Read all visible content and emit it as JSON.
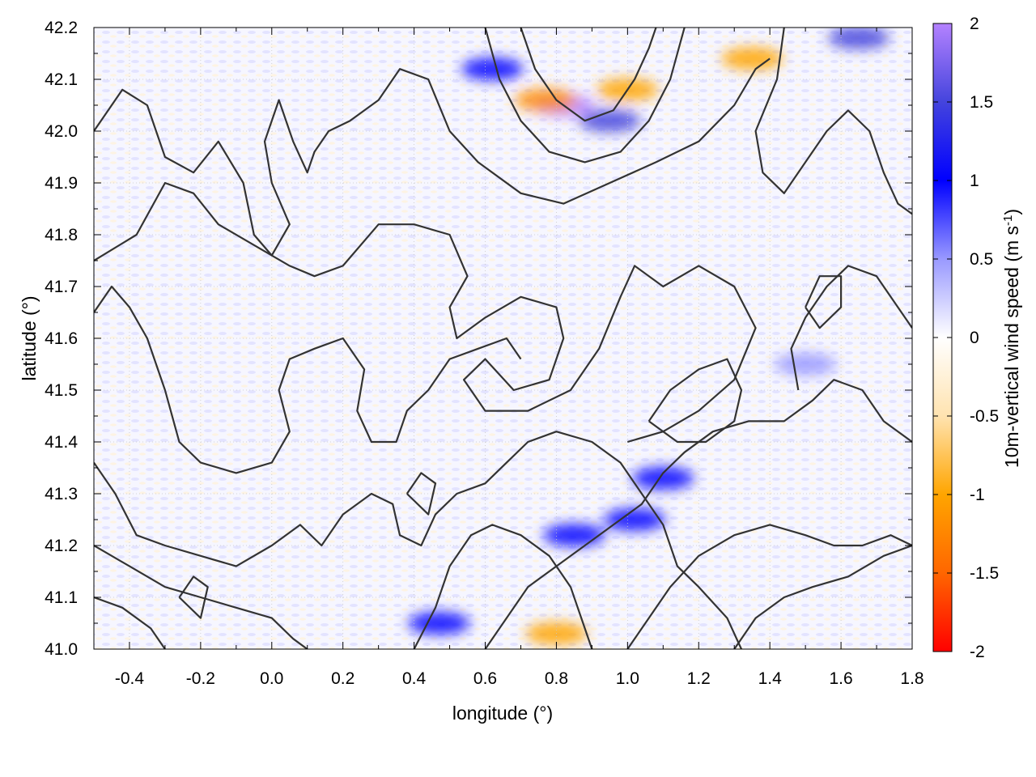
{
  "chart_data": {
    "type": "heatmap",
    "title": "",
    "xlabel": "longitude (°)",
    "ylabel": "latitude (°)",
    "colorbar_label": "10m-vertical wind speed (m s",
    "colorbar_label_sup": "-1",
    "colorbar_label_close": ")",
    "xlim": [
      -0.5,
      1.8
    ],
    "ylim": [
      41.0,
      42.2
    ],
    "xticks": [
      -0.4,
      -0.2,
      0.0,
      0.2,
      0.4,
      0.6,
      0.8,
      1.0,
      1.2,
      1.4,
      1.6,
      1.8
    ],
    "xtick_labels": [
      "-0.4",
      "-0.2",
      "0.0",
      "0.2",
      "0.4",
      "0.6",
      "0.8",
      "1.0",
      "1.2",
      "1.4",
      "1.6",
      "1.8"
    ],
    "yticks": [
      41.0,
      41.1,
      41.2,
      41.3,
      41.4,
      41.5,
      41.6,
      41.7,
      41.8,
      41.9,
      42.0,
      42.1,
      42.2
    ],
    "ytick_labels": [
      "41.0",
      "41.1",
      "41.2",
      "41.3",
      "41.4",
      "41.5",
      "41.6",
      "41.7",
      "41.8",
      "41.9",
      "42.0",
      "42.1",
      "42.2"
    ],
    "colorbar_range": [
      -2,
      2
    ],
    "colorbar_ticks": [
      2,
      1.5,
      1,
      0.5,
      0,
      -0.5,
      -1,
      -1.5,
      -2
    ],
    "colorbar_tick_labels": [
      "2",
      "1.5",
      "1",
      "0.5",
      "0",
      "-0.5",
      "-1",
      "-1.5",
      "-2"
    ],
    "colormap": [
      "#ff0000",
      "#ff8c00",
      "#ffa500",
      "#ffe4b5",
      "#ffffff",
      "#9999ff",
      "#0000ff",
      "#4444dd",
      "#b482ff"
    ],
    "grid": true,
    "hotspots": [
      {
        "lon": 0.82,
        "lat": 42.05,
        "value": 1.8
      },
      {
        "lon": 0.95,
        "lat": 42.02,
        "value": 1.6
      },
      {
        "lon": 1.65,
        "lat": 42.18,
        "value": 1.5
      },
      {
        "lon": 0.85,
        "lat": 41.22,
        "value": 1.2
      },
      {
        "lon": 1.02,
        "lat": 41.25,
        "value": 1.2
      },
      {
        "lon": 1.1,
        "lat": 41.33,
        "value": 1.0
      },
      {
        "lon": 0.62,
        "lat": 42.12,
        "value": 1.0
      },
      {
        "lon": 1.0,
        "lat": 42.08,
        "value": -1.2
      },
      {
        "lon": 0.77,
        "lat": 42.06,
        "value": -1.3
      },
      {
        "lon": 0.8,
        "lat": 41.03,
        "value": -0.8
      },
      {
        "lon": 1.35,
        "lat": 42.14,
        "value": -0.9
      },
      {
        "lon": 0.47,
        "lat": 41.05,
        "value": 0.9
      },
      {
        "lon": 1.5,
        "lat": 41.55,
        "value": 0.7
      }
    ],
    "contours": [
      [
        [
          -0.5,
          42.0
        ],
        [
          -0.42,
          42.08
        ],
        [
          -0.35,
          42.05
        ],
        [
          -0.3,
          41.95
        ],
        [
          -0.22,
          41.92
        ],
        [
          -0.15,
          41.98
        ],
        [
          -0.08,
          41.9
        ],
        [
          -0.05,
          41.8
        ],
        [
          0.0,
          41.76
        ],
        [
          0.05,
          41.82
        ],
        [
          0.0,
          41.9
        ],
        [
          -0.02,
          41.98
        ],
        [
          0.02,
          42.06
        ],
        [
          0.06,
          41.98
        ],
        [
          0.1,
          41.92
        ],
        [
          0.12,
          41.96
        ],
        [
          0.16,
          42.0
        ],
        [
          0.22,
          42.02
        ],
        [
          0.3,
          42.06
        ],
        [
          0.36,
          42.12
        ],
        [
          0.44,
          42.1
        ],
        [
          0.5,
          42.0
        ],
        [
          0.58,
          41.94
        ],
        [
          0.7,
          41.88
        ],
        [
          0.82,
          41.86
        ],
        [
          0.95,
          41.9
        ],
        [
          1.08,
          41.94
        ],
        [
          1.2,
          41.98
        ],
        [
          1.3,
          42.05
        ],
        [
          1.36,
          42.12
        ],
        [
          1.4,
          42.14
        ]
      ],
      [
        [
          -0.5,
          41.75
        ],
        [
          -0.38,
          41.8
        ],
        [
          -0.3,
          41.9
        ],
        [
          -0.22,
          41.88
        ],
        [
          -0.15,
          41.82
        ],
        [
          -0.05,
          41.78
        ],
        [
          0.05,
          41.74
        ],
        [
          0.12,
          41.72
        ],
        [
          0.2,
          41.74
        ],
        [
          0.3,
          41.82
        ],
        [
          0.4,
          41.82
        ],
        [
          0.5,
          41.8
        ],
        [
          0.55,
          41.72
        ],
        [
          0.5,
          41.66
        ],
        [
          0.52,
          41.6
        ],
        [
          0.6,
          41.64
        ],
        [
          0.7,
          41.68
        ],
        [
          0.8,
          41.66
        ],
        [
          0.82,
          41.6
        ],
        [
          0.78,
          41.52
        ],
        [
          0.68,
          41.5
        ],
        [
          0.6,
          41.56
        ],
        [
          0.54,
          41.52
        ],
        [
          0.6,
          41.46
        ],
        [
          0.72,
          41.46
        ],
        [
          0.84,
          41.5
        ],
        [
          0.92,
          41.58
        ],
        [
          0.98,
          41.68
        ],
        [
          1.02,
          41.74
        ],
        [
          1.1,
          41.7
        ],
        [
          1.2,
          41.74
        ],
        [
          1.3,
          41.7
        ],
        [
          1.36,
          41.62
        ],
        [
          1.3,
          41.52
        ],
        [
          1.2,
          41.46
        ],
        [
          1.1,
          41.42
        ],
        [
          1.0,
          41.4
        ]
      ],
      [
        [
          -0.5,
          41.65
        ],
        [
          -0.45,
          41.7
        ],
        [
          -0.4,
          41.66
        ],
        [
          -0.35,
          41.6
        ],
        [
          -0.3,
          41.5
        ],
        [
          -0.26,
          41.4
        ],
        [
          -0.2,
          41.36
        ],
        [
          -0.1,
          41.34
        ],
        [
          0.0,
          41.36
        ],
        [
          0.05,
          41.42
        ],
        [
          0.02,
          41.5
        ],
        [
          0.05,
          41.56
        ],
        [
          0.12,
          41.58
        ],
        [
          0.2,
          41.6
        ],
        [
          0.26,
          41.54
        ],
        [
          0.24,
          41.46
        ],
        [
          0.28,
          41.4
        ],
        [
          0.35,
          41.4
        ],
        [
          0.38,
          41.46
        ],
        [
          0.44,
          41.5
        ],
        [
          0.5,
          41.56
        ],
        [
          0.58,
          41.58
        ],
        [
          0.66,
          41.6
        ],
        [
          0.7,
          41.56
        ]
      ],
      [
        [
          -0.5,
          41.36
        ],
        [
          -0.44,
          41.3
        ],
        [
          -0.38,
          41.22
        ],
        [
          -0.3,
          41.2
        ],
        [
          -0.2,
          41.18
        ],
        [
          -0.1,
          41.16
        ],
        [
          0.0,
          41.2
        ],
        [
          0.08,
          41.24
        ],
        [
          0.14,
          41.2
        ],
        [
          0.2,
          41.26
        ],
        [
          0.28,
          41.3
        ],
        [
          0.34,
          41.28
        ],
        [
          0.36,
          41.22
        ],
        [
          0.42,
          41.2
        ],
        [
          0.46,
          41.26
        ],
        [
          0.52,
          41.3
        ],
        [
          0.6,
          41.32
        ],
        [
          0.66,
          41.36
        ],
        [
          0.72,
          41.4
        ],
        [
          0.8,
          41.42
        ],
        [
          0.9,
          41.4
        ],
        [
          0.98,
          41.36
        ],
        [
          1.04,
          41.3
        ],
        [
          1.1,
          41.24
        ],
        [
          1.14,
          41.16
        ],
        [
          1.2,
          41.12
        ],
        [
          1.28,
          41.06
        ],
        [
          1.32,
          41.0
        ]
      ],
      [
        [
          -0.5,
          41.1
        ],
        [
          -0.42,
          41.08
        ],
        [
          -0.34,
          41.04
        ],
        [
          -0.3,
          41.0
        ]
      ],
      [
        [
          -0.5,
          41.2
        ],
        [
          -0.4,
          41.16
        ],
        [
          -0.3,
          41.12
        ],
        [
          -0.2,
          41.1
        ],
        [
          -0.1,
          41.08
        ],
        [
          0.0,
          41.06
        ],
        [
          0.06,
          41.02
        ],
        [
          0.1,
          41.0
        ]
      ],
      [
        [
          0.4,
          41.0
        ],
        [
          0.46,
          41.08
        ],
        [
          0.5,
          41.16
        ],
        [
          0.56,
          41.22
        ],
        [
          0.62,
          41.24
        ],
        [
          0.7,
          41.22
        ],
        [
          0.78,
          41.18
        ],
        [
          0.84,
          41.12
        ],
        [
          0.88,
          41.04
        ],
        [
          0.9,
          41.0
        ]
      ],
      [
        [
          0.6,
          41.0
        ],
        [
          0.66,
          41.06
        ],
        [
          0.72,
          41.12
        ],
        [
          0.8,
          41.16
        ],
        [
          0.88,
          41.2
        ],
        [
          0.96,
          41.24
        ],
        [
          1.04,
          41.28
        ],
        [
          1.1,
          41.34
        ],
        [
          1.16,
          41.38
        ],
        [
          1.24,
          41.42
        ],
        [
          1.34,
          41.44
        ],
        [
          1.44,
          41.44
        ],
        [
          1.52,
          41.48
        ],
        [
          1.58,
          41.52
        ],
        [
          1.66,
          41.5
        ],
        [
          1.72,
          41.44
        ],
        [
          1.8,
          41.4
        ]
      ],
      [
        [
          1.0,
          41.0
        ],
        [
          1.06,
          41.06
        ],
        [
          1.12,
          41.12
        ],
        [
          1.2,
          41.18
        ],
        [
          1.3,
          41.22
        ],
        [
          1.4,
          41.24
        ],
        [
          1.5,
          41.22
        ],
        [
          1.58,
          41.2
        ],
        [
          1.66,
          41.2
        ],
        [
          1.74,
          41.22
        ],
        [
          1.8,
          41.2
        ]
      ],
      [
        [
          1.3,
          41.0
        ],
        [
          1.36,
          41.06
        ],
        [
          1.44,
          41.1
        ],
        [
          1.52,
          41.12
        ],
        [
          1.62,
          41.14
        ],
        [
          1.72,
          41.18
        ],
        [
          1.8,
          41.2
        ]
      ],
      [
        [
          1.44,
          42.2
        ],
        [
          1.42,
          42.1
        ],
        [
          1.36,
          42.0
        ],
        [
          1.38,
          41.92
        ],
        [
          1.44,
          41.88
        ],
        [
          1.5,
          41.94
        ],
        [
          1.56,
          42.0
        ],
        [
          1.62,
          42.04
        ],
        [
          1.68,
          42.0
        ],
        [
          1.72,
          41.92
        ],
        [
          1.76,
          41.86
        ],
        [
          1.8,
          41.84
        ]
      ],
      [
        [
          1.48,
          41.5
        ],
        [
          1.46,
          41.58
        ],
        [
          1.5,
          41.64
        ],
        [
          1.56,
          41.7
        ],
        [
          1.62,
          41.74
        ],
        [
          1.7,
          41.72
        ],
        [
          1.76,
          41.66
        ],
        [
          1.8,
          41.62
        ]
      ],
      [
        [
          0.7,
          42.2
        ],
        [
          0.74,
          42.12
        ],
        [
          0.8,
          42.06
        ],
        [
          0.88,
          42.02
        ],
        [
          0.96,
          42.04
        ],
        [
          1.02,
          42.1
        ],
        [
          1.06,
          42.16
        ],
        [
          1.08,
          42.2
        ]
      ],
      [
        [
          0.6,
          42.2
        ],
        [
          0.64,
          42.1
        ],
        [
          0.7,
          42.02
        ],
        [
          0.78,
          41.96
        ],
        [
          0.88,
          41.94
        ],
        [
          0.98,
          41.96
        ],
        [
          1.06,
          42.02
        ],
        [
          1.12,
          42.1
        ],
        [
          1.16,
          42.2
        ]
      ],
      [
        [
          1.06,
          41.44
        ],
        [
          1.12,
          41.5
        ],
        [
          1.2,
          41.54
        ],
        [
          1.28,
          41.56
        ],
        [
          1.32,
          41.5
        ],
        [
          1.3,
          41.44
        ],
        [
          1.22,
          41.4
        ],
        [
          1.14,
          41.4
        ],
        [
          1.06,
          41.44
        ]
      ],
      [
        [
          0.38,
          41.3
        ],
        [
          0.42,
          41.34
        ],
        [
          0.46,
          41.32
        ],
        [
          0.44,
          41.26
        ],
        [
          0.38,
          41.3
        ]
      ],
      [
        [
          -0.26,
          41.1
        ],
        [
          -0.22,
          41.14
        ],
        [
          -0.18,
          41.12
        ],
        [
          -0.2,
          41.06
        ],
        [
          -0.26,
          41.1
        ]
      ],
      [
        [
          1.5,
          41.66
        ],
        [
          1.54,
          41.72
        ],
        [
          1.6,
          41.72
        ],
        [
          1.6,
          41.66
        ],
        [
          1.54,
          41.62
        ],
        [
          1.5,
          41.66
        ]
      ]
    ]
  }
}
